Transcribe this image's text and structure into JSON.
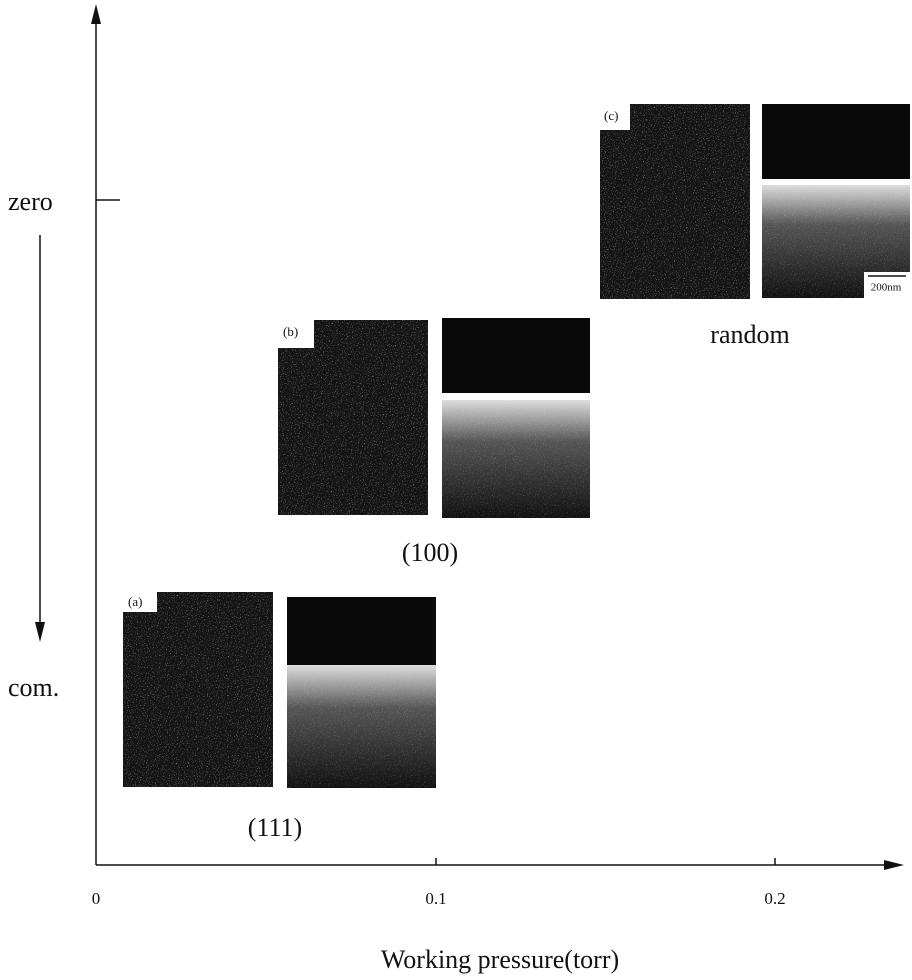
{
  "figure": {
    "x_axis": {
      "label": "Working pressure(torr)",
      "ticks": [
        0,
        0.1,
        0.2
      ]
    },
    "y_axis": {
      "labels": [
        "zero",
        "com."
      ]
    },
    "panels": [
      {
        "tag": "(a)",
        "orientation": "(111)"
      },
      {
        "tag": "(b)",
        "orientation": "(100)"
      },
      {
        "tag": "(c)",
        "orientation": "random",
        "scale_bar": "200nm"
      }
    ]
  }
}
